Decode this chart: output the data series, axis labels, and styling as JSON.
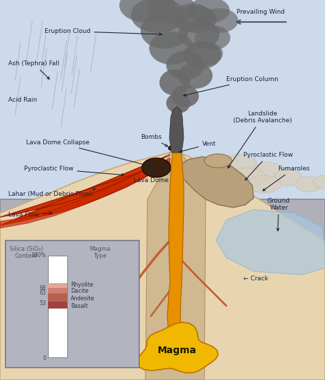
{
  "bg_sky": "#cddaec",
  "volcano_tan": "#e8d5b0",
  "volcano_edge": "#c8a878",
  "lava_red": "#cc3300",
  "magma_orange": "#e89000",
  "magma_yellow": "#f0b800",
  "smoke_dark": "#6a6a6a",
  "smoke_light": "#999999",
  "underground_gray": "#b0b0bb",
  "underground_edge": "#888899",
  "inset_bg": "#b2b4c0",
  "ground_water_blue": "#aac8dd",
  "pyroclastic_tan": "#c8b898",
  "crack_brown": "#c06030",
  "lava_dome_dark": "#5a3a20",
  "fumaroles_tan": "#b8a080",
  "annotation_color": "#1a2040",
  "rhyolite_color": "#e0a898",
  "dacite_color": "#cc8070",
  "andesite_color": "#b86050",
  "basalt_color": "#a04040",
  "labels": {
    "eruption_cloud": "Eruption Cloud",
    "ash_fall": "Ash (Tephra) Fall",
    "acid_rain": "Acid Rain",
    "lava_dome_collapse": "Lava Dome Collapse",
    "pyroclastic_left": "Pyroclastic Flow",
    "lahar": "Lahar (Mud or Debris Flow)",
    "lava_flow": "Lava Flow",
    "bombs": "Bombs",
    "lava_dome": "Lava Dome",
    "vent": "Vent",
    "eruption_column": "Eruption Column",
    "landslide": "Landslide\n(Debris Avalanche)",
    "pyroclastic_right": "Pyroclastic Flow",
    "fumaroles": "Fumaroles",
    "ground_water": "Ground\nWater",
    "crack": "← Crack",
    "magma": "Magma",
    "prevailing_wind": "Prevailing Wind"
  },
  "inset_labels": {
    "silica_title": "Silica (SiO₂)\nContent",
    "magma_type": "Magma\nType",
    "rhyolite": "Rhyolite",
    "dacite": "Dacite",
    "andesite": "Andesite",
    "basalt": "Basalt"
  }
}
